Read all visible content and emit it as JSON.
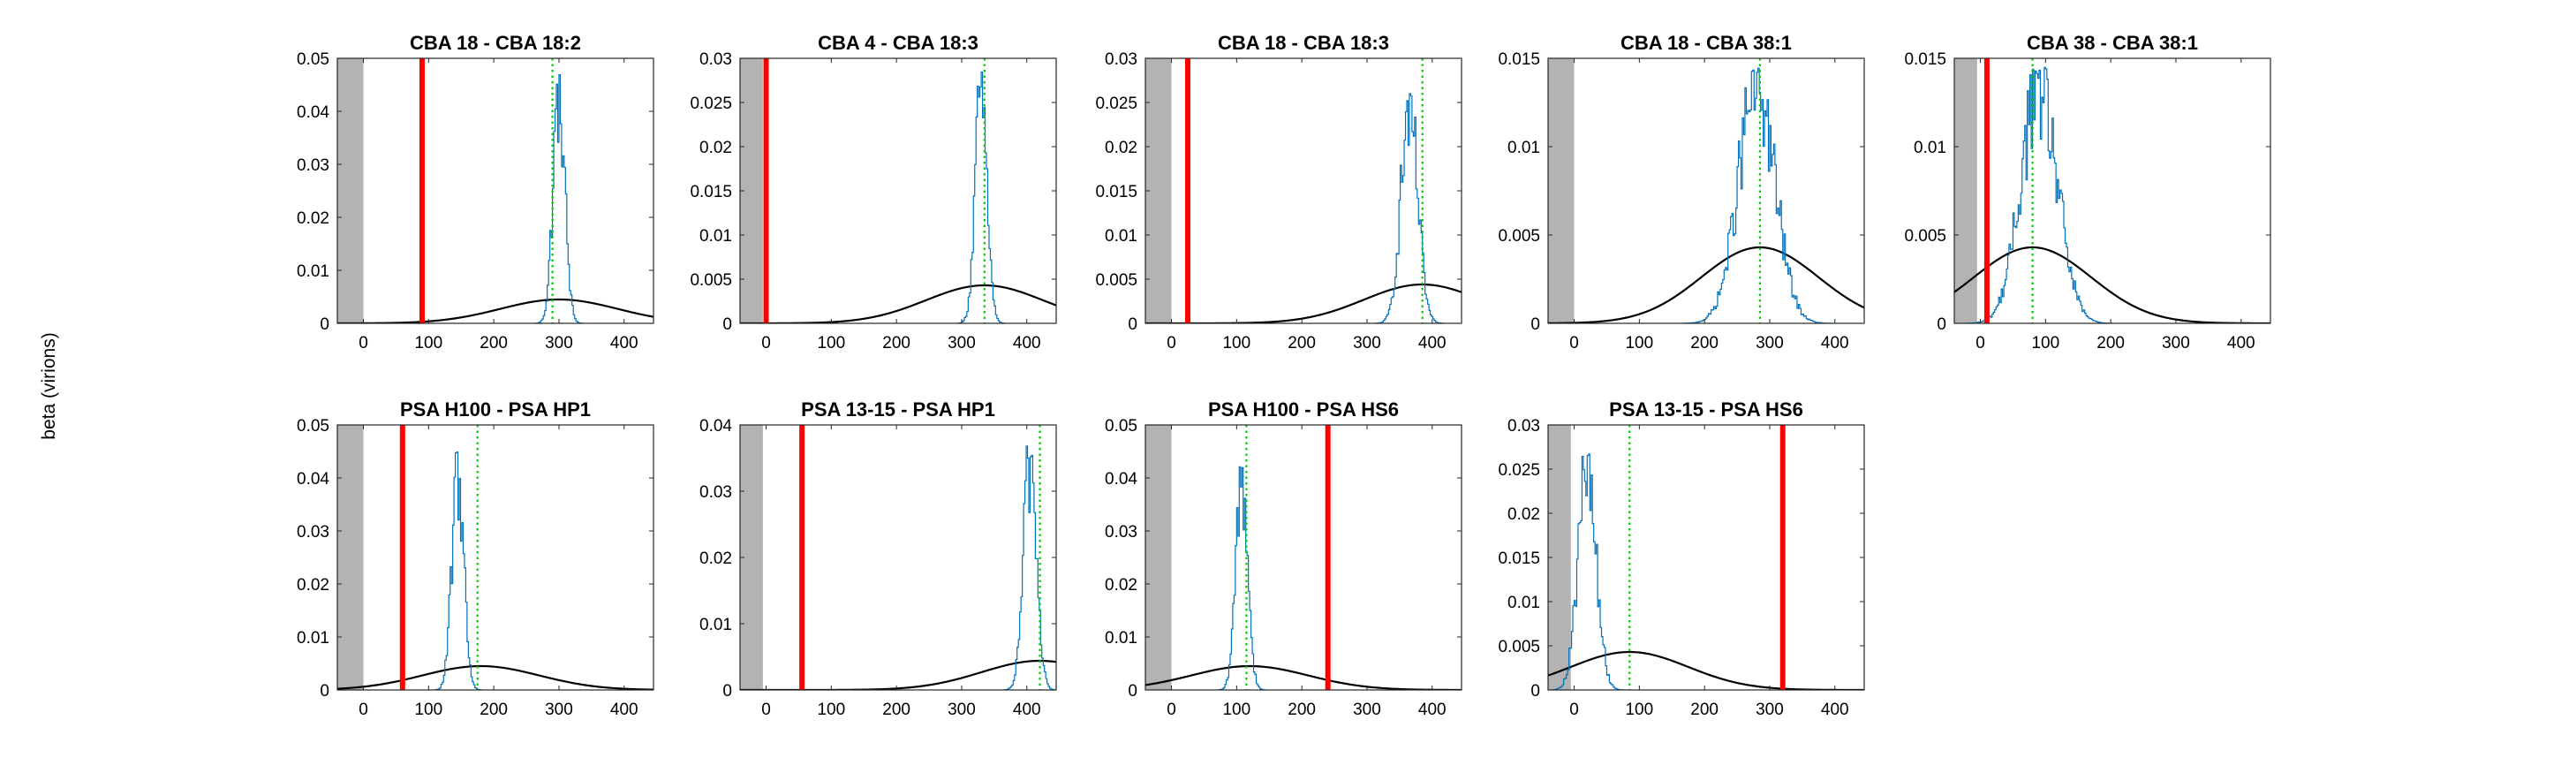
{
  "figure": {
    "ylabel": "beta (virions)"
  },
  "chart_data": [
    {
      "type": "line",
      "title": "CBA 18 - CBA 18:2",
      "xlim": [
        -40,
        445
      ],
      "ylim": [
        0,
        0.05
      ],
      "xticks": [
        0,
        100,
        200,
        300,
        400
      ],
      "yticks": [
        0,
        0.01,
        0.02,
        0.03,
        0.04,
        0.05
      ],
      "ytick_labels": [
        "0",
        "0.01",
        "0.02",
        "0.03",
        "0.04",
        "0.05"
      ],
      "grey_band": [
        -40,
        0
      ],
      "red_line_x": 90,
      "green_line_x": 290,
      "histogram": {
        "center": 300,
        "sd": 9,
        "peak": 0.047
      },
      "curve": {
        "mean": 300,
        "sd": 90,
        "peak": 0.0045
      }
    },
    {
      "type": "line",
      "title": "CBA 4 - CBA 18:3",
      "xlim": [
        -40,
        445
      ],
      "ylim": [
        0,
        0.03
      ],
      "xticks": [
        0,
        100,
        200,
        300,
        400
      ],
      "yticks": [
        0,
        0.005,
        0.01,
        0.015,
        0.02,
        0.025,
        0.03
      ],
      "ytick_labels": [
        "0",
        "0.005",
        "0.01",
        "0.015",
        "0.02",
        "0.025",
        "0.03"
      ],
      "grey_band": [
        -40,
        -5
      ],
      "red_line_x": 0,
      "green_line_x": 335,
      "histogram": {
        "center": 330,
        "sd": 9,
        "peak": 0.0285
      },
      "curve": {
        "mean": 335,
        "sd": 90,
        "peak": 0.0043
      }
    },
    {
      "type": "line",
      "title": "CBA 18 - CBA 18:3",
      "xlim": [
        -40,
        445
      ],
      "ylim": [
        0,
        0.03
      ],
      "xticks": [
        0,
        100,
        200,
        300,
        400
      ],
      "yticks": [
        0,
        0.005,
        0.01,
        0.015,
        0.02,
        0.025,
        0.03
      ],
      "ytick_labels": [
        "0",
        "0.005",
        "0.01",
        "0.015",
        "0.02",
        "0.025",
        "0.03"
      ],
      "grey_band": [
        -40,
        0
      ],
      "red_line_x": 25,
      "green_line_x": 385,
      "histogram": {
        "center": 365,
        "sd": 13,
        "peak": 0.026
      },
      "curve": {
        "mean": 385,
        "sd": 90,
        "peak": 0.0044
      }
    },
    {
      "type": "line",
      "title": "CBA 18 - CBA 38:1",
      "xlim": [
        -40,
        445
      ],
      "ylim": [
        0,
        0.015
      ],
      "xticks": [
        0,
        100,
        200,
        300,
        400
      ],
      "yticks": [
        0,
        0.005,
        0.01,
        0.015
      ],
      "ytick_labels": [
        "0",
        "0.005",
        "0.01",
        "0.015"
      ],
      "grey_band": [
        -40,
        0
      ],
      "red_line_x": null,
      "green_line_x": 285,
      "histogram": {
        "center": 280,
        "sd": 28,
        "peak": 0.0145
      },
      "curve": {
        "mean": 285,
        "sd": 90,
        "peak": 0.0043
      }
    },
    {
      "type": "line",
      "title": "CBA 38 - CBA 38:1",
      "xlim": [
        -40,
        445
      ],
      "ylim": [
        0,
        0.015
      ],
      "xticks": [
        0,
        100,
        200,
        300,
        400
      ],
      "yticks": [
        0,
        0.005,
        0.01,
        0.015
      ],
      "ytick_labels": [
        "0",
        "0.005",
        "0.01",
        "0.015"
      ],
      "grey_band": [
        -40,
        -5
      ],
      "red_line_x": 10,
      "green_line_x": 80,
      "histogram": {
        "center": 90,
        "sd": 28,
        "peak": 0.0145
      },
      "curve": {
        "mean": 80,
        "sd": 90,
        "peak": 0.0043
      }
    },
    {
      "type": "line",
      "title": "PSA H100 - PSA HP1",
      "xlim": [
        -40,
        445
      ],
      "ylim": [
        0,
        0.05
      ],
      "xticks": [
        0,
        100,
        200,
        300,
        400
      ],
      "yticks": [
        0,
        0.01,
        0.02,
        0.03,
        0.04,
        0.05
      ],
      "ytick_labels": [
        "0",
        "0.01",
        "0.02",
        "0.03",
        "0.04",
        "0.05"
      ],
      "grey_band": [
        -40,
        0
      ],
      "red_line_x": 60,
      "green_line_x": 175,
      "histogram": {
        "center": 145,
        "sd": 9,
        "peak": 0.0455
      },
      "curve": {
        "mean": 180,
        "sd": 90,
        "peak": 0.0045
      }
    },
    {
      "type": "line",
      "title": "PSA 13-15 - PSA HP1",
      "xlim": [
        -40,
        445
      ],
      "ylim": [
        0,
        0.04
      ],
      "xticks": [
        0,
        100,
        200,
        300,
        400
      ],
      "yticks": [
        0,
        0.01,
        0.02,
        0.03,
        0.04
      ],
      "ytick_labels": [
        "0",
        "0.01",
        "0.02",
        "0.03",
        "0.04"
      ],
      "grey_band": [
        -40,
        -5
      ],
      "red_line_x": 55,
      "green_line_x": 420,
      "histogram": {
        "center": 405,
        "sd": 10,
        "peak": 0.0375
      },
      "curve": {
        "mean": 420,
        "sd": 90,
        "peak": 0.0044
      }
    },
    {
      "type": "line",
      "title": "PSA H100 - PSA HS6",
      "xlim": [
        -40,
        445
      ],
      "ylim": [
        0,
        0.05
      ],
      "xticks": [
        0,
        100,
        200,
        300,
        400
      ],
      "yticks": [
        0,
        0.01,
        0.02,
        0.03,
        0.04,
        0.05
      ],
      "ytick_labels": [
        "0",
        "0.01",
        "0.02",
        "0.03",
        "0.04",
        "0.05"
      ],
      "grey_band": [
        -40,
        0
      ],
      "red_line_x": 240,
      "green_line_x": 115,
      "histogram": {
        "center": 108,
        "sd": 9,
        "peak": 0.044
      },
      "curve": {
        "mean": 120,
        "sd": 90,
        "peak": 0.0045
      }
    },
    {
      "type": "line",
      "title": "PSA 13-15 - PSA HS6",
      "xlim": [
        -40,
        445
      ],
      "ylim": [
        0,
        0.03
      ],
      "xticks": [
        0,
        100,
        200,
        300,
        400
      ],
      "yticks": [
        0,
        0.005,
        0.01,
        0.015,
        0.02,
        0.025,
        0.03
      ],
      "ytick_labels": [
        "0",
        "0.005",
        "0.01",
        "0.015",
        "0.02",
        "0.025",
        "0.03"
      ],
      "grey_band": [
        -40,
        -5
      ],
      "red_line_x": 320,
      "green_line_x": 85,
      "histogram": {
        "center": 20,
        "sd": 14,
        "peak": 0.027
      },
      "curve": {
        "mean": 85,
        "sd": 90,
        "peak": 0.0043
      }
    }
  ]
}
